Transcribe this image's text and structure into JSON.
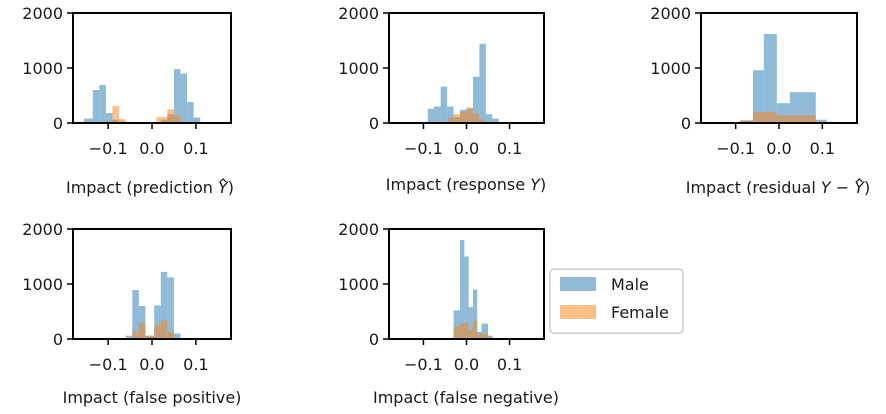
{
  "chart_data": [
    {
      "type": "histogram",
      "xlabel_plain": "Impact (prediction ",
      "xlabel_symbol": "Y",
      "xlabel_end": ")",
      "xlim": [
        -0.18,
        0.18
      ],
      "ylim": [
        0,
        2000
      ],
      "xticks": [
        "−0.1",
        "0.0",
        "0.1"
      ],
      "xtick_values": [
        -0.1,
        0.0,
        0.1
      ],
      "yticks": [
        "0",
        "1000",
        "2000"
      ],
      "ytick_values": [
        0,
        1000,
        2000
      ],
      "series": [
        {
          "name": "Male",
          "bins": [
            {
              "x0": -0.175,
              "x1": -0.155,
              "v": 20
            },
            {
              "x0": -0.155,
              "x1": -0.135,
              "v": 80
            },
            {
              "x0": -0.135,
              "x1": -0.12,
              "v": 600
            },
            {
              "x0": -0.12,
              "x1": -0.105,
              "v": 690
            },
            {
              "x0": -0.105,
              "x1": -0.09,
              "v": 180
            },
            {
              "x0": -0.09,
              "x1": -0.075,
              "v": 60
            },
            {
              "x0": -0.075,
              "x1": -0.06,
              "v": 30
            },
            {
              "x0": 0.02,
              "x1": 0.035,
              "v": 60
            },
            {
              "x0": 0.035,
              "x1": 0.05,
              "v": 160
            },
            {
              "x0": 0.05,
              "x1": 0.065,
              "v": 980
            },
            {
              "x0": 0.065,
              "x1": 0.08,
              "v": 900
            },
            {
              "x0": 0.08,
              "x1": 0.095,
              "v": 380
            },
            {
              "x0": 0.095,
              "x1": 0.11,
              "v": 100
            }
          ]
        },
        {
          "name": "Female",
          "bins": [
            {
              "x0": -0.105,
              "x1": -0.09,
              "v": 40
            },
            {
              "x0": -0.09,
              "x1": -0.075,
              "v": 310
            },
            {
              "x0": -0.075,
              "x1": -0.06,
              "v": 70
            },
            {
              "x0": -0.06,
              "x1": -0.045,
              "v": 20
            },
            {
              "x0": 0.01,
              "x1": 0.035,
              "v": 110
            },
            {
              "x0": 0.035,
              "x1": 0.05,
              "v": 250
            },
            {
              "x0": 0.05,
              "x1": 0.065,
              "v": 140
            }
          ]
        }
      ]
    },
    {
      "type": "histogram",
      "xlabel_plain": "Impact (response ",
      "xlabel_symbol": "Y",
      "xlabel_end": ")",
      "xlim": [
        -0.18,
        0.18
      ],
      "ylim": [
        0,
        2000
      ],
      "xticks": [
        "−0.1",
        "0.0",
        "0.1"
      ],
      "xtick_values": [
        -0.1,
        0.0,
        0.1
      ],
      "yticks": [
        "0",
        "1000",
        "2000"
      ],
      "ytick_values": [
        0,
        1000,
        2000
      ],
      "series": [
        {
          "name": "Male",
          "bins": [
            {
              "x0": -0.09,
              "x1": -0.075,
              "v": 260
            },
            {
              "x0": -0.075,
              "x1": -0.06,
              "v": 300
            },
            {
              "x0": -0.06,
              "x1": -0.045,
              "v": 660
            },
            {
              "x0": -0.045,
              "x1": -0.03,
              "v": 300
            },
            {
              "x0": -0.03,
              "x1": -0.015,
              "v": 110
            },
            {
              "x0": -0.015,
              "x1": 0.0,
              "v": 240
            },
            {
              "x0": 0.0,
              "x1": 0.015,
              "v": 260
            },
            {
              "x0": 0.015,
              "x1": 0.03,
              "v": 840
            },
            {
              "x0": 0.03,
              "x1": 0.045,
              "v": 1440
            },
            {
              "x0": 0.045,
              "x1": 0.06,
              "v": 160
            },
            {
              "x0": 0.06,
              "x1": 0.075,
              "v": 80
            }
          ]
        },
        {
          "name": "Female",
          "bins": [
            {
              "x0": -0.045,
              "x1": -0.03,
              "v": 90
            },
            {
              "x0": -0.03,
              "x1": -0.015,
              "v": 160
            },
            {
              "x0": -0.015,
              "x1": 0.0,
              "v": 200
            },
            {
              "x0": 0.0,
              "x1": 0.015,
              "v": 280
            },
            {
              "x0": 0.015,
              "x1": 0.03,
              "v": 170
            },
            {
              "x0": 0.03,
              "x1": 0.045,
              "v": 60
            }
          ]
        }
      ]
    },
    {
      "type": "histogram",
      "xlabel_plain": "Impact (residual ",
      "xlabel_symbol": "Y − Y",
      "xlabel_end": ")",
      "xlim": [
        -0.18,
        0.18
      ],
      "ylim": [
        0,
        2000
      ],
      "xticks": [
        "−0.1",
        "0.0",
        "0.1"
      ],
      "xtick_values": [
        -0.1,
        0.0,
        0.1
      ],
      "yticks": [
        "0",
        "1000",
        "2000"
      ],
      "ytick_values": [
        0,
        1000,
        2000
      ],
      "series": [
        {
          "name": "Male",
          "bins": [
            {
              "x0": -0.09,
              "x1": -0.06,
              "v": 50
            },
            {
              "x0": -0.06,
              "x1": -0.035,
              "v": 960
            },
            {
              "x0": -0.035,
              "x1": -0.005,
              "v": 1620
            },
            {
              "x0": -0.005,
              "x1": 0.025,
              "v": 360
            },
            {
              "x0": 0.025,
              "x1": 0.085,
              "v": 560
            },
            {
              "x0": 0.085,
              "x1": 0.11,
              "v": 60
            },
            {
              "x0": 0.11,
              "x1": 0.135,
              "v": 20
            }
          ]
        },
        {
          "name": "Female",
          "bins": [
            {
              "x0": -0.09,
              "x1": -0.06,
              "v": 40
            },
            {
              "x0": -0.06,
              "x1": -0.035,
              "v": 200
            },
            {
              "x0": -0.035,
              "x1": -0.005,
              "v": 200
            },
            {
              "x0": -0.005,
              "x1": 0.025,
              "v": 140
            },
            {
              "x0": 0.025,
              "x1": 0.085,
              "v": 140
            },
            {
              "x0": 0.085,
              "x1": 0.11,
              "v": 20
            }
          ]
        }
      ]
    },
    {
      "type": "histogram",
      "xlabel_plain": "Impact (false positive)",
      "xlabel_symbol": "",
      "xlabel_end": "",
      "xlim": [
        -0.18,
        0.18
      ],
      "ylim": [
        0,
        2000
      ],
      "xticks": [
        "−0.1",
        "0.0",
        "0.1"
      ],
      "xtick_values": [
        -0.1,
        0.0,
        0.1
      ],
      "yticks": [
        "0",
        "1000",
        "2000"
      ],
      "ytick_values": [
        0,
        1000,
        2000
      ],
      "series": [
        {
          "name": "Male",
          "bins": [
            {
              "x0": -0.06,
              "x1": -0.045,
              "v": 60
            },
            {
              "x0": -0.045,
              "x1": -0.03,
              "v": 890
            },
            {
              "x0": -0.03,
              "x1": -0.015,
              "v": 600
            },
            {
              "x0": -0.015,
              "x1": 0.005,
              "v": 60
            },
            {
              "x0": 0.005,
              "x1": 0.02,
              "v": 610
            },
            {
              "x0": 0.02,
              "x1": 0.035,
              "v": 1220
            },
            {
              "x0": 0.035,
              "x1": 0.05,
              "v": 1120
            },
            {
              "x0": 0.05,
              "x1": 0.065,
              "v": 100
            }
          ]
        },
        {
          "name": "Female",
          "bins": [
            {
              "x0": -0.045,
              "x1": -0.03,
              "v": 140
            },
            {
              "x0": -0.03,
              "x1": -0.015,
              "v": 290
            },
            {
              "x0": -0.015,
              "x1": 0.005,
              "v": 60
            },
            {
              "x0": 0.005,
              "x1": 0.02,
              "v": 250
            },
            {
              "x0": 0.02,
              "x1": 0.035,
              "v": 340
            },
            {
              "x0": 0.035,
              "x1": 0.05,
              "v": 120
            }
          ]
        }
      ]
    },
    {
      "type": "histogram",
      "xlabel_plain": "Impact (false negative)",
      "xlabel_symbol": "",
      "xlabel_end": "",
      "xlim": [
        -0.18,
        0.18
      ],
      "ylim": [
        0,
        2000
      ],
      "xticks": [
        "−0.1",
        "0.0",
        "0.1"
      ],
      "xtick_values": [
        -0.1,
        0.0,
        0.1
      ],
      "yticks": [
        "0",
        "1000",
        "2000"
      ],
      "ytick_values": [
        0,
        1000,
        2000
      ],
      "series": [
        {
          "name": "Male",
          "bins": [
            {
              "x0": -0.03,
              "x1": -0.015,
              "v": 520
            },
            {
              "x0": -0.015,
              "x1": -0.005,
              "v": 1800
            },
            {
              "x0": -0.005,
              "x1": 0.005,
              "v": 1500
            },
            {
              "x0": 0.005,
              "x1": 0.015,
              "v": 580
            },
            {
              "x0": 0.015,
              "x1": 0.025,
              "v": 900
            },
            {
              "x0": 0.025,
              "x1": 0.035,
              "v": 130
            },
            {
              "x0": 0.035,
              "x1": 0.05,
              "v": 280
            },
            {
              "x0": 0.05,
              "x1": 0.06,
              "v": 60
            }
          ]
        },
        {
          "name": "Female",
          "bins": [
            {
              "x0": -0.03,
              "x1": -0.015,
              "v": 220
            },
            {
              "x0": -0.015,
              "x1": -0.005,
              "v": 280
            },
            {
              "x0": -0.005,
              "x1": 0.005,
              "v": 300
            },
            {
              "x0": 0.005,
              "x1": 0.015,
              "v": 170
            },
            {
              "x0": 0.015,
              "x1": 0.025,
              "v": 330
            },
            {
              "x0": 0.025,
              "x1": 0.035,
              "v": 90
            },
            {
              "x0": 0.035,
              "x1": 0.05,
              "v": 100
            },
            {
              "x0": 0.05,
              "x1": 0.06,
              "v": 30
            }
          ]
        }
      ]
    }
  ],
  "legend": {
    "placement": "right of bottom row",
    "entries": [
      {
        "name": "Male",
        "color": "#1f77b4"
      },
      {
        "name": "Female",
        "color": "#ff7f0e"
      }
    ]
  },
  "colors": {
    "male": "#1f77b4",
    "female": "#ff7f0e",
    "axis": "#000000",
    "legend_border": "#cccccc"
  }
}
